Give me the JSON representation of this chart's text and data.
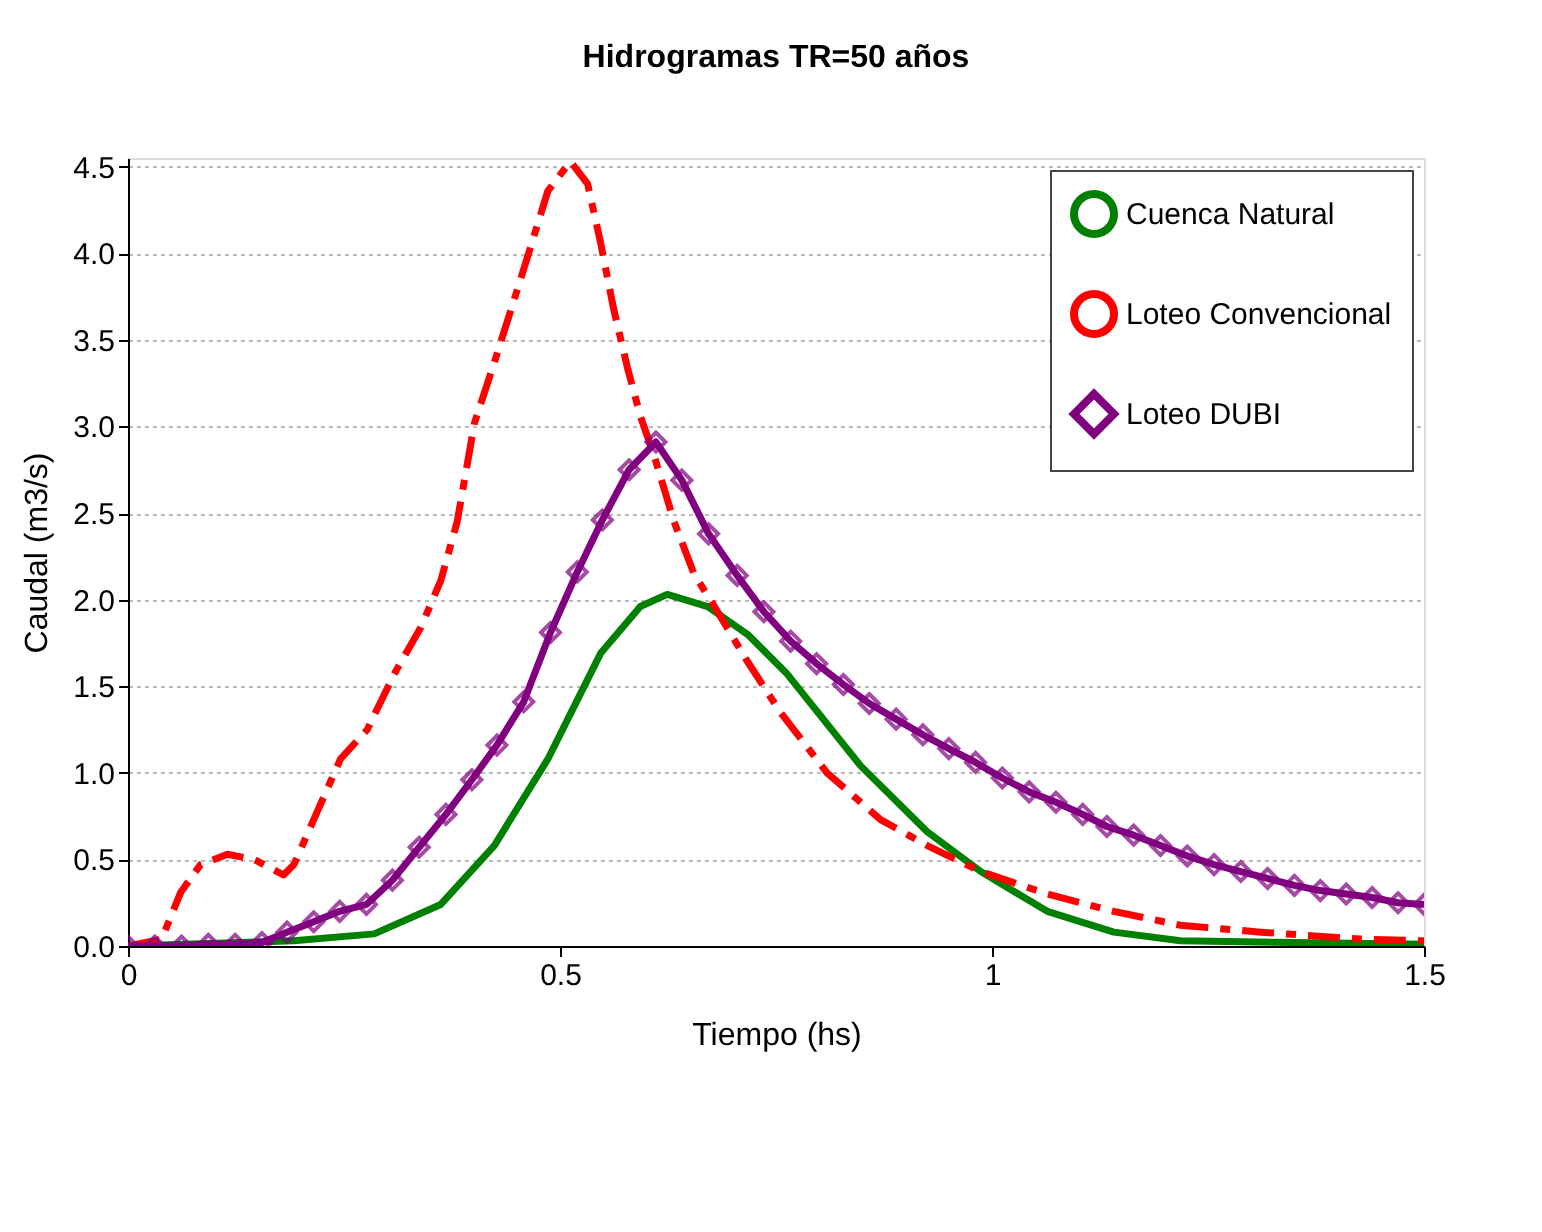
{
  "chart_data": {
    "type": "line",
    "title": "Hidrogramas TR=50 años",
    "xlabel": "Tiempo (hs)",
    "ylabel": "Caudal (m3/s)",
    "xlim": [
      0,
      1.5
    ],
    "xticks": [
      0,
      0.5,
      1,
      1.5
    ],
    "ylim": [
      0,
      4.55
    ],
    "yticks": [
      {
        "value": 0,
        "label": "0.0"
      },
      {
        "value": 0.5,
        "label": "0.5"
      },
      {
        "value": 1,
        "label": "1.0"
      },
      {
        "value": 1.5,
        "label": "1.5"
      },
      {
        "value": 2,
        "label": "2.0"
      },
      {
        "value": 2.5,
        "label": "2.5"
      },
      {
        "value": 3,
        "label": "3.0"
      },
      {
        "value": 3.5,
        "label": "3.5"
      },
      {
        "value": 4,
        "label": "4.0"
      },
      {
        "value": 4.5,
        "label": "4.5"
      }
    ],
    "grid": "y",
    "legend": "top right",
    "series": [
      {
        "name": "Cuenca Natural",
        "color": "#008000",
        "line_style": "solid",
        "marker": "none",
        "x": [
          0,
          0.192,
          0.285,
          0.362,
          0.424,
          0.486,
          0.547,
          0.593,
          0.624,
          0.671,
          0.717,
          0.763,
          0.848,
          0.925,
          0.987,
          1.064,
          1.141,
          1.218,
          1.35,
          1.5
        ],
        "values": [
          0,
          0.03,
          0.07,
          0.24,
          0.58,
          1.08,
          1.69,
          1.96,
          2.03,
          1.96,
          1.8,
          1.57,
          1.04,
          0.66,
          0.43,
          0.2,
          0.08,
          0.03,
          0.02,
          0.01
        ]
      },
      {
        "name": "Loteo Convencional",
        "color": "#ff0000",
        "line_style": "dashed",
        "marker": "none",
        "x": [
          0,
          0.039,
          0.061,
          0.084,
          0.115,
          0.146,
          0.18,
          0.192,
          0.215,
          0.246,
          0.277,
          0.308,
          0.339,
          0.362,
          0.381,
          0.401,
          0.424,
          0.455,
          0.486,
          0.512,
          0.532,
          0.547,
          0.562,
          0.578,
          0.593,
          0.609,
          0.632,
          0.655,
          0.68,
          0.716,
          0.755,
          0.809,
          0.871,
          0.925,
          0.987,
          1.064,
          1.141,
          1.218,
          1.311,
          1.426,
          1.5
        ],
        "values": [
          0,
          0.04,
          0.31,
          0.47,
          0.53,
          0.5,
          0.41,
          0.47,
          0.73,
          1.08,
          1.25,
          1.57,
          1.84,
          2.11,
          2.45,
          3.02,
          3.37,
          3.86,
          4.36,
          4.53,
          4.4,
          4.06,
          3.68,
          3.34,
          3.06,
          2.83,
          2.45,
          2.15,
          1.95,
          1.65,
          1.35,
          1.0,
          0.73,
          0.58,
          0.43,
          0.3,
          0.2,
          0.12,
          0.08,
          0.04,
          0.03
        ]
      },
      {
        "name": "Loteo DUBI",
        "color": "#800080",
        "line_style": "solid",
        "marker": "diamond",
        "x": [
          0,
          0.031,
          0.062,
          0.093,
          0.124,
          0.155,
          0.184,
          0.215,
          0.245,
          0.276,
          0.306,
          0.337,
          0.368,
          0.398,
          0.427,
          0.458,
          0.489,
          0.52,
          0.549,
          0.58,
          0.611,
          0.641,
          0.672,
          0.705,
          0.736,
          0.767,
          0.797,
          0.828,
          0.858,
          0.889,
          0.92,
          0.95,
          0.981,
          1.012,
          1.043,
          1.074,
          1.105,
          1.133,
          1.164,
          1.195,
          1.226,
          1.257,
          1.288,
          1.319,
          1.35,
          1.38,
          1.41,
          1.44,
          1.47,
          1.5
        ],
        "values": [
          0,
          0,
          0,
          0.01,
          0.01,
          0.02,
          0.08,
          0.14,
          0.2,
          0.24,
          0.38,
          0.57,
          0.76,
          0.96,
          1.16,
          1.41,
          1.81,
          2.16,
          2.46,
          2.75,
          2.91,
          2.69,
          2.38,
          2.14,
          1.93,
          1.76,
          1.63,
          1.51,
          1.4,
          1.31,
          1.22,
          1.14,
          1.06,
          0.97,
          0.89,
          0.83,
          0.76,
          0.69,
          0.64,
          0.58,
          0.52,
          0.47,
          0.43,
          0.39,
          0.35,
          0.32,
          0.3,
          0.28,
          0.25,
          0.24
        ]
      }
    ]
  }
}
